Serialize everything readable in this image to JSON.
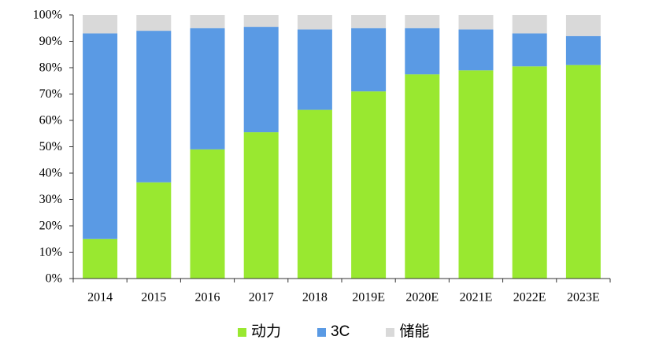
{
  "chart_data": {
    "type": "bar",
    "stacked": true,
    "categories": [
      "2014",
      "2015",
      "2016",
      "2017",
      "2018",
      "2019E",
      "2020E",
      "2021E",
      "2022E",
      "2023E"
    ],
    "series": [
      {
        "name": "动力",
        "color": "#99e830",
        "values": [
          15,
          36.5,
          49,
          55.5,
          64,
          71,
          77.5,
          79,
          80.5,
          81
        ]
      },
      {
        "name": "3C",
        "color": "#5a9ae4",
        "values": [
          78,
          57.5,
          46,
          40,
          30.5,
          24,
          17.5,
          15.5,
          12.5,
          11
        ]
      },
      {
        "name": "储能",
        "color": "#d9d9d9",
        "values": [
          7,
          6,
          5,
          4.5,
          5.5,
          5,
          5,
          5.5,
          7,
          8
        ]
      }
    ],
    "ylim": [
      0,
      100
    ],
    "yticks": [
      0,
      10,
      20,
      30,
      40,
      50,
      60,
      70,
      80,
      90,
      100
    ],
    "ytick_labels": [
      "0%",
      "10%",
      "20%",
      "30%",
      "40%",
      "50%",
      "60%",
      "70%",
      "80%",
      "90%",
      "100%"
    ],
    "grid": false,
    "legend": "bottom"
  }
}
